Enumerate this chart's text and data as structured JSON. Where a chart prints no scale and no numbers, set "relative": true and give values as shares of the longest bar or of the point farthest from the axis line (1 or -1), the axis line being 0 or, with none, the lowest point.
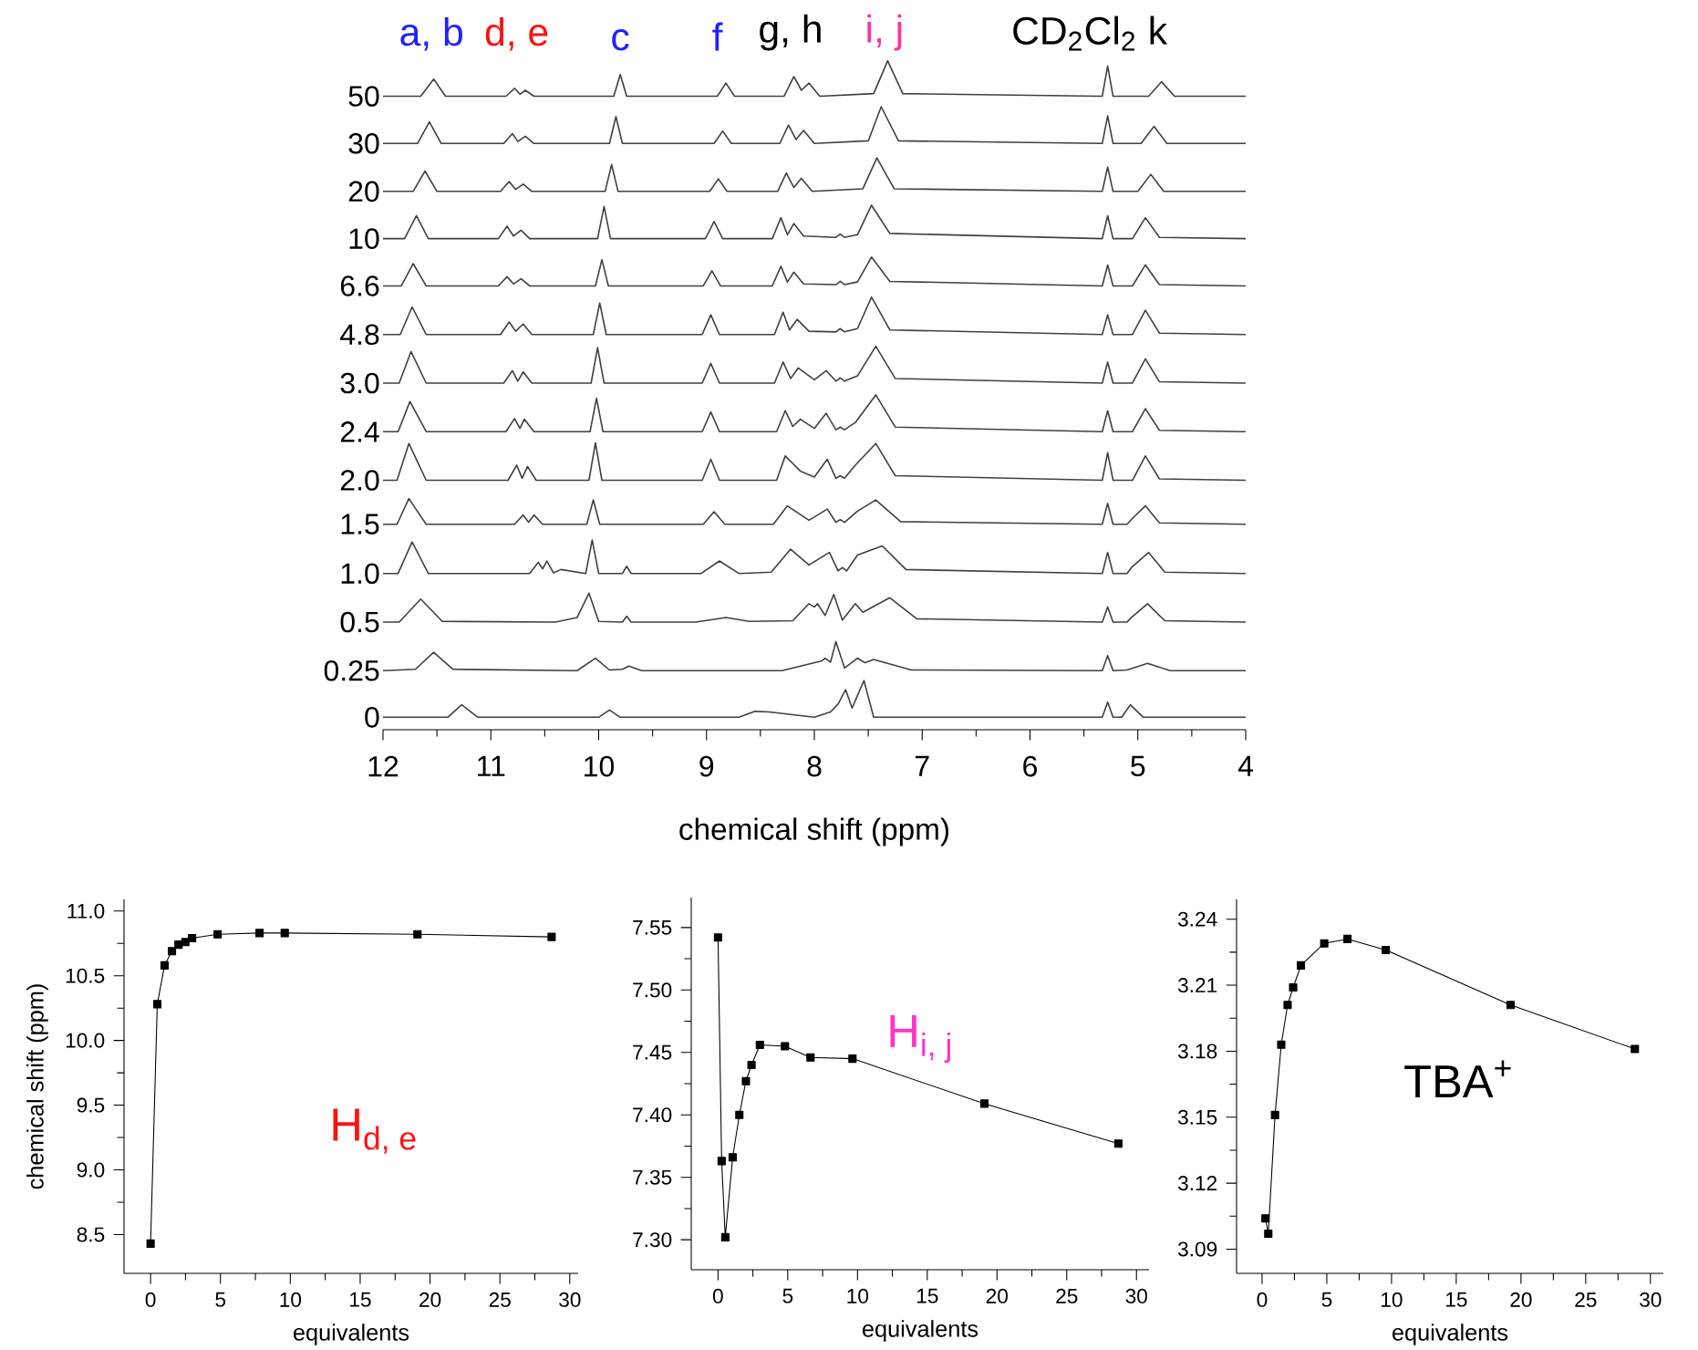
{
  "chart_data": [
    {
      "type": "line",
      "relative": true,
      "xlabel": "chemical shift (ppm)",
      "xlim": [
        12,
        4
      ],
      "xticks": [
        12,
        11,
        10,
        9,
        8,
        7,
        6,
        5,
        4
      ],
      "annotations": [
        "a, b",
        "d, e",
        "c",
        "f",
        "g, h",
        "i, j",
        "CD$_{2}$Cl$_{2}$ k"
      ],
      "series": [
        {
          "name": "50",
          "color": "#404040",
          "x": [
            12,
            11.65,
            11.53,
            11.42,
            10.86,
            10.78,
            10.73,
            10.68,
            10.6,
            9.86,
            9.8,
            9.74,
            8.9,
            8.82,
            8.74,
            8.28,
            8.19,
            8.12,
            8.05,
            7.95,
            7.45,
            7.32,
            7.18,
            5.33,
            5.28,
            5.23,
            4.9,
            4.78,
            4.66,
            4
          ],
          "values": [
            0.946,
            0.946,
            0.972,
            0.946,
            0.946,
            0.958,
            0.949,
            0.955,
            0.946,
            0.946,
            0.979,
            0.946,
            0.946,
            0.966,
            0.946,
            0.946,
            0.976,
            0.955,
            0.966,
            0.946,
            0.95,
            1.0,
            0.95,
            0.946,
            0.992,
            0.946,
            0.946,
            0.968,
            0.946,
            0.946
          ]
        },
        {
          "name": "30",
          "color": "#404040",
          "x": [
            12,
            11.68,
            11.57,
            11.46,
            10.88,
            10.8,
            10.75,
            10.68,
            10.6,
            9.9,
            9.84,
            9.78,
            8.93,
            8.85,
            8.77,
            8.32,
            8.24,
            8.17,
            8.1,
            8.0,
            7.5,
            7.38,
            7.22,
            5.33,
            5.28,
            5.23,
            4.97,
            4.85,
            4.73,
            4
          ],
          "values": [
            0.874,
            0.874,
            0.907,
            0.874,
            0.874,
            0.889,
            0.877,
            0.885,
            0.874,
            0.874,
            0.915,
            0.874,
            0.874,
            0.893,
            0.874,
            0.874,
            0.902,
            0.88,
            0.894,
            0.874,
            0.878,
            0.93,
            0.878,
            0.874,
            0.916,
            0.874,
            0.874,
            0.9,
            0.874,
            0.874
          ]
        },
        {
          "name": "20",
          "color": "#404040",
          "x": [
            12,
            11.72,
            11.61,
            11.5,
            10.91,
            10.83,
            10.77,
            10.7,
            10.62,
            9.94,
            9.88,
            9.82,
            8.97,
            8.89,
            8.81,
            8.34,
            8.26,
            8.19,
            8.12,
            8.02,
            7.55,
            7.42,
            7.26,
            5.33,
            5.28,
            5.23,
            5.0,
            4.88,
            4.76,
            4
          ],
          "values": [
            0.801,
            0.801,
            0.832,
            0.801,
            0.801,
            0.816,
            0.804,
            0.812,
            0.801,
            0.801,
            0.842,
            0.801,
            0.801,
            0.82,
            0.801,
            0.801,
            0.829,
            0.807,
            0.821,
            0.801,
            0.805,
            0.852,
            0.805,
            0.801,
            0.838,
            0.801,
            0.801,
            0.827,
            0.801,
            0.801
          ]
        },
        {
          "name": "10",
          "color": "#404040",
          "x": [
            12,
            11.8,
            11.69,
            11.58,
            10.93,
            10.85,
            10.79,
            10.72,
            10.64,
            10.01,
            9.95,
            9.89,
            9.01,
            8.93,
            8.85,
            8.39,
            8.31,
            8.25,
            8.19,
            8.1,
            7.8,
            7.76,
            7.72,
            7.6,
            7.47,
            7.3,
            5.33,
            5.28,
            5.23,
            5.05,
            4.93,
            4.8,
            4
          ],
          "values": [
            0.729,
            0.729,
            0.764,
            0.729,
            0.729,
            0.748,
            0.733,
            0.742,
            0.729,
            0.729,
            0.778,
            0.729,
            0.729,
            0.755,
            0.729,
            0.729,
            0.761,
            0.735,
            0.752,
            0.733,
            0.731,
            0.736,
            0.731,
            0.735,
            0.78,
            0.737,
            0.729,
            0.764,
            0.729,
            0.729,
            0.761,
            0.731,
            0.729
          ]
        },
        {
          "name": "6.6",
          "color": "#404040",
          "x": [
            12,
            11.83,
            11.72,
            11.6,
            10.93,
            10.85,
            10.79,
            10.72,
            10.64,
            10.03,
            9.97,
            9.91,
            9.03,
            8.95,
            8.87,
            8.39,
            8.31,
            8.25,
            8.19,
            8.1,
            7.8,
            7.76,
            7.72,
            7.6,
            7.47,
            7.3,
            5.33,
            5.28,
            5.23,
            5.05,
            4.93,
            4.8,
            4
          ],
          "values": [
            0.657,
            0.657,
            0.691,
            0.657,
            0.657,
            0.671,
            0.66,
            0.668,
            0.657,
            0.657,
            0.697,
            0.657,
            0.657,
            0.68,
            0.657,
            0.657,
            0.687,
            0.663,
            0.678,
            0.66,
            0.659,
            0.664,
            0.659,
            0.663,
            0.701,
            0.664,
            0.657,
            0.689,
            0.657,
            0.657,
            0.689,
            0.659,
            0.657
          ]
        },
        {
          "name": "4.8",
          "color": "#404040",
          "x": [
            12,
            11.84,
            11.73,
            11.6,
            10.91,
            10.83,
            10.77,
            10.7,
            10.62,
            10.05,
            9.99,
            9.93,
            9.04,
            8.96,
            8.88,
            8.37,
            8.29,
            8.23,
            8.16,
            8.05,
            7.8,
            7.76,
            7.72,
            7.6,
            7.47,
            7.3,
            5.33,
            5.28,
            5.23,
            5.05,
            4.93,
            4.8,
            4
          ],
          "values": [
            0.583,
            0.583,
            0.625,
            0.583,
            0.583,
            0.602,
            0.588,
            0.599,
            0.583,
            0.583,
            0.631,
            0.583,
            0.583,
            0.613,
            0.583,
            0.583,
            0.617,
            0.59,
            0.606,
            0.588,
            0.587,
            0.592,
            0.587,
            0.592,
            0.64,
            0.59,
            0.583,
            0.613,
            0.583,
            0.583,
            0.62,
            0.585,
            0.583
          ]
        },
        {
          "name": "3.0",
          "color": "#404040",
          "x": [
            12,
            11.85,
            11.74,
            11.6,
            10.88,
            10.8,
            10.75,
            10.7,
            10.62,
            10.07,
            10.01,
            9.95,
            9.04,
            8.96,
            8.88,
            8.37,
            8.29,
            8.22,
            8.15,
            8.0,
            7.89,
            7.8,
            7.76,
            7.72,
            7.6,
            7.43,
            7.25,
            5.33,
            5.28,
            5.23,
            5.05,
            4.93,
            4.8,
            4
          ],
          "values": [
            0.509,
            0.509,
            0.557,
            0.509,
            0.509,
            0.528,
            0.512,
            0.526,
            0.509,
            0.509,
            0.563,
            0.509,
            0.509,
            0.539,
            0.509,
            0.509,
            0.541,
            0.516,
            0.532,
            0.514,
            0.528,
            0.512,
            0.517,
            0.512,
            0.52,
            0.565,
            0.516,
            0.509,
            0.541,
            0.509,
            0.509,
            0.546,
            0.511,
            0.509
          ]
        },
        {
          "name": "2.4",
          "color": "#404040",
          "x": [
            12,
            11.86,
            11.75,
            11.6,
            10.86,
            10.78,
            10.73,
            10.69,
            10.6,
            10.08,
            10.02,
            9.96,
            9.04,
            8.96,
            8.88,
            8.35,
            8.27,
            8.2,
            8.13,
            8.0,
            7.89,
            7.8,
            7.76,
            7.72,
            7.62,
            7.43,
            7.25,
            5.33,
            5.28,
            5.23,
            5.05,
            4.93,
            4.8,
            4
          ],
          "values": [
            0.435,
            0.435,
            0.481,
            0.435,
            0.435,
            0.455,
            0.44,
            0.454,
            0.435,
            0.435,
            0.486,
            0.435,
            0.435,
            0.465,
            0.435,
            0.435,
            0.467,
            0.443,
            0.454,
            0.44,
            0.463,
            0.438,
            0.442,
            0.438,
            0.449,
            0.491,
            0.442,
            0.435,
            0.467,
            0.435,
            0.435,
            0.47,
            0.437,
            0.435
          ]
        },
        {
          "name": "2.0",
          "color": "#404040",
          "x": [
            12,
            11.87,
            11.76,
            11.6,
            10.84,
            10.76,
            10.71,
            10.66,
            10.58,
            10.09,
            10.03,
            9.97,
            9.04,
            8.96,
            8.88,
            8.35,
            8.27,
            8.13,
            8.0,
            7.88,
            7.8,
            7.76,
            7.72,
            7.62,
            7.43,
            7.25,
            5.33,
            5.28,
            5.23,
            5.05,
            4.93,
            4.8,
            4
          ],
          "values": [
            0.361,
            0.361,
            0.417,
            0.361,
            0.361,
            0.384,
            0.364,
            0.382,
            0.361,
            0.361,
            0.418,
            0.361,
            0.361,
            0.393,
            0.361,
            0.361,
            0.398,
            0.375,
            0.366,
            0.393,
            0.364,
            0.368,
            0.364,
            0.384,
            0.417,
            0.368,
            0.361,
            0.403,
            0.361,
            0.361,
            0.398,
            0.363,
            0.361
          ]
        },
        {
          "name": "1.5",
          "color": "#404040",
          "x": [
            12,
            11.87,
            11.76,
            11.6,
            10.78,
            10.7,
            10.65,
            10.6,
            10.52,
            10.11,
            10.05,
            9.99,
            9.03,
            8.93,
            8.83,
            8.38,
            8.25,
            8.05,
            7.88,
            7.8,
            7.76,
            7.72,
            7.6,
            7.43,
            7.2,
            5.33,
            5.28,
            5.23,
            5.1,
            5.05,
            4.93,
            4.8,
            4
          ],
          "values": [
            0.294,
            0.294,
            0.333,
            0.294,
            0.294,
            0.308,
            0.297,
            0.308,
            0.294,
            0.294,
            0.331,
            0.294,
            0.294,
            0.313,
            0.294,
            0.294,
            0.322,
            0.3,
            0.317,
            0.297,
            0.301,
            0.297,
            0.314,
            0.331,
            0.298,
            0.294,
            0.326,
            0.294,
            0.294,
            0.303,
            0.322,
            0.296,
            0.294
          ]
        },
        {
          "name": "1.0",
          "color": "#404040",
          "x": [
            12,
            11.86,
            11.73,
            11.58,
            10.64,
            10.56,
            10.52,
            10.48,
            10.42,
            10.35,
            10.12,
            10.06,
            10.0,
            9.78,
            9.74,
            9.7,
            9.05,
            8.88,
            8.7,
            8.4,
            8.22,
            8.05,
            7.86,
            7.78,
            7.74,
            7.7,
            7.6,
            7.37,
            7.15,
            5.33,
            5.28,
            5.23,
            5.1,
            5.06,
            4.9,
            4.75,
            4
          ],
          "values": [
            0.219,
            0.219,
            0.267,
            0.219,
            0.219,
            0.236,
            0.226,
            0.238,
            0.22,
            0.225,
            0.219,
            0.27,
            0.219,
            0.219,
            0.23,
            0.219,
            0.219,
            0.238,
            0.219,
            0.221,
            0.256,
            0.232,
            0.251,
            0.223,
            0.228,
            0.223,
            0.247,
            0.261,
            0.225,
            0.219,
            0.251,
            0.219,
            0.219,
            0.228,
            0.251,
            0.221,
            0.219
          ]
        },
        {
          "name": "0.5",
          "color": "#404040",
          "x": [
            12,
            11.85,
            11.65,
            11.45,
            10.4,
            10.2,
            10.09,
            10.0,
            9.78,
            9.74,
            9.7,
            9.1,
            8.82,
            8.6,
            8.2,
            8.05,
            8.0,
            7.97,
            7.9,
            7.82,
            7.74,
            7.62,
            7.55,
            7.3,
            7.05,
            5.33,
            5.28,
            5.23,
            5.1,
            5.06,
            4.91,
            4.75,
            4
          ],
          "values": [
            0.145,
            0.145,
            0.18,
            0.146,
            0.145,
            0.152,
            0.189,
            0.146,
            0.145,
            0.154,
            0.145,
            0.145,
            0.152,
            0.146,
            0.147,
            0.173,
            0.168,
            0.173,
            0.155,
            0.187,
            0.148,
            0.173,
            0.16,
            0.182,
            0.15,
            0.145,
            0.168,
            0.145,
            0.145,
            0.152,
            0.173,
            0.147,
            0.145
          ]
        },
        {
          "name": "0.25",
          "color": "#404040",
          "x": [
            12,
            11.7,
            11.53,
            11.35,
            10.2,
            10.03,
            9.9,
            9.78,
            9.72,
            9.6,
            8.3,
            7.93,
            7.9,
            7.85,
            7.8,
            7.72,
            7.6,
            7.53,
            7.45,
            7.1,
            5.33,
            5.28,
            5.23,
            5.1,
            4.91,
            4.7,
            4
          ],
          "values": [
            0.071,
            0.073,
            0.099,
            0.073,
            0.071,
            0.09,
            0.072,
            0.073,
            0.078,
            0.071,
            0.071,
            0.086,
            0.09,
            0.084,
            0.115,
            0.075,
            0.09,
            0.083,
            0.088,
            0.072,
            0.071,
            0.094,
            0.071,
            0.072,
            0.082,
            0.071,
            0.071
          ]
        },
        {
          "name": "0",
          "color": "#404040",
          "x": [
            12,
            11.4,
            11.27,
            11.12,
            10.0,
            9.9,
            9.8,
            8.7,
            8.55,
            8.42,
            8.0,
            7.85,
            7.78,
            7.71,
            7.65,
            7.54,
            7.45,
            5.33,
            5.28,
            5.23,
            5.15,
            5.07,
            4.95,
            4
          ],
          "values": [
            0,
            0,
            0.019,
            0,
            0,
            0.011,
            0,
            0,
            0.009,
            0.008,
            0,
            0.008,
            0.02,
            0.042,
            0.014,
            0.056,
            0,
            0,
            0.023,
            0,
            0,
            0.019,
            0,
            0
          ]
        }
      ]
    },
    {
      "type": "line",
      "marker": "square",
      "xlabel": "equivalents",
      "ylabel": "chemical shift (ppm)",
      "xlim": [
        -1.9,
        30.6
      ],
      "ylim": [
        8.2,
        11.09
      ],
      "xticks": [
        0,
        5,
        10,
        15,
        20,
        25,
        30
      ],
      "yticks": [
        8.5,
        {
          "value": 9,
          "label": "9.0"
        },
        9.5,
        {
          "value": 10,
          "label": "10.0"
        },
        10.5,
        {
          "value": 11,
          "label": "11.0"
        }
      ],
      "annotations": [
        "\\text{H}_{\\text{d, e}}"
      ],
      "x": [
        0,
        0.48,
        1.0,
        1.53,
        2.0,
        2.49,
        2.97,
        4.8,
        7.8,
        9.6,
        19.1,
        28.7
      ],
      "series": [
        {
          "color": "#000000",
          "values": [
            8.43,
            10.28,
            10.58,
            10.69,
            10.74,
            10.76,
            10.79,
            10.82,
            10.83,
            10.83,
            10.82,
            10.8
          ]
        }
      ]
    },
    {
      "type": "line",
      "marker": "square",
      "xlabel": "equivalents",
      "xlim": [
        -1.92,
        30.9
      ],
      "ylim": [
        7.276,
        7.574
      ],
      "xticks": [
        0,
        5,
        10,
        15,
        20,
        25,
        30
      ],
      "yticks": [
        {
          "value": 7.3,
          "label": "7.30"
        },
        7.35,
        {
          "value": 7.4,
          "label": "7.40"
        },
        7.45,
        {
          "value": 7.5,
          "label": "7.50"
        },
        7.55
      ],
      "annotations": [
        "\\text{H}_{\\text{i, j}}"
      ],
      "x": [
        0,
        0.26,
        0.52,
        1.05,
        1.53,
        2.0,
        2.4,
        3.0,
        4.8,
        6.63,
        9.64,
        19.1,
        28.7
      ],
      "series": [
        {
          "color": "#000000",
          "values": [
            7.542,
            7.363,
            7.302,
            7.366,
            7.4,
            7.427,
            7.44,
            7.456,
            7.455,
            7.446,
            7.445,
            7.409,
            7.377
          ]
        }
      ]
    },
    {
      "type": "line",
      "marker": "square",
      "xlabel": "equivalents",
      "xlim": [
        -1.97,
        31
      ],
      "ylim": [
        3.079,
        3.249
      ],
      "xticks": [
        0,
        5,
        10,
        15,
        20,
        25,
        30
      ],
      "yticks": [
        3.09,
        3.12,
        3.15,
        3.18,
        3.21,
        3.24
      ],
      "annotations": [
        "\\text{TBA}^{\\text{+}}"
      ],
      "x": [
        0.26,
        0.48,
        1.0,
        1.48,
        1.97,
        2.4,
        3.0,
        4.8,
        6.6,
        9.56,
        19.2,
        28.8
      ],
      "series": [
        {
          "color": "#000000",
          "values": [
            3.104,
            3.097,
            3.151,
            3.183,
            3.201,
            3.209,
            3.219,
            3.229,
            3.231,
            3.226,
            3.201,
            3.181
          ]
        }
      ]
    }
  ]
}
